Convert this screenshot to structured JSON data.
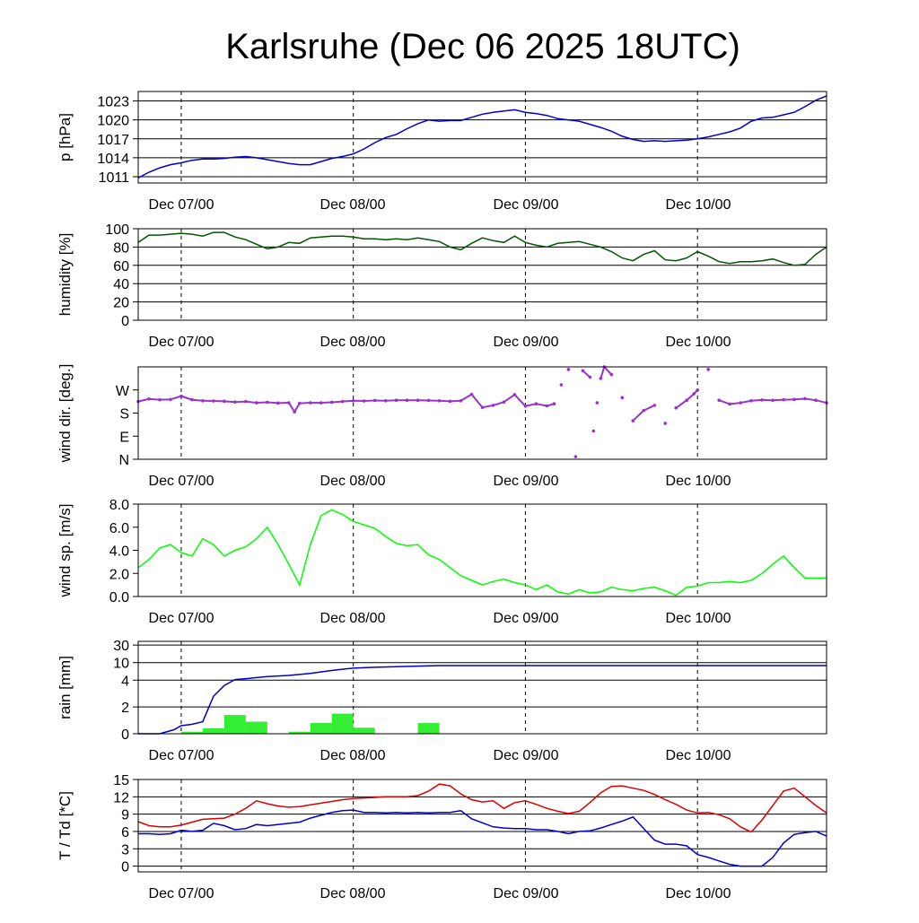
{
  "title": "Karlsruhe (Dec 06 2025 18UTC)",
  "x_tick_labels": [
    "Dec 07/00",
    "Dec 08/00",
    "Dec 09/00",
    "Dec 10/00"
  ],
  "chart_data": [
    {
      "type": "line",
      "ylabel": "p [hPa]",
      "ylim": [
        1010,
        1024.5
      ],
      "yticks": [
        1011,
        1014,
        1017,
        1020,
        1023
      ],
      "ytick_labels": [
        "1011",
        "1014",
        "1017",
        "1020",
        "1023"
      ],
      "xlim": [
        -6,
        90
      ],
      "x_unit": "hours since Dec 07 00UTC",
      "grid": true,
      "series": [
        {
          "color": "#0000cc",
          "x": [
            -6,
            -4.5,
            -3,
            -1.5,
            0,
            1.5,
            3,
            4.5,
            6,
            7.5,
            9,
            10.5,
            12,
            13.5,
            15,
            16.5,
            18,
            19.5,
            21,
            22.5,
            24,
            25.5,
            27,
            28.5,
            30,
            31.5,
            33,
            34.5,
            36,
            37.5,
            39,
            40.5,
            42,
            43.5,
            45,
            46.5,
            48,
            49.5,
            51,
            52.5,
            54,
            55.5,
            57,
            58.5,
            60,
            61.5,
            63,
            64.5,
            66,
            67.5,
            69,
            70.5,
            72,
            73.5,
            75,
            76.5,
            78,
            79.5,
            81,
            82.5,
            84,
            85.5,
            87,
            88.5,
            90
          ],
          "y": [
            1010.8,
            1011.7,
            1012.4,
            1012.9,
            1013.2,
            1013.6,
            1013.8,
            1013.8,
            1013.9,
            1014.1,
            1014.2,
            1014.0,
            1013.7,
            1013.4,
            1013.1,
            1012.9,
            1012.9,
            1013.4,
            1013.9,
            1014.2,
            1014.6,
            1015.4,
            1016.4,
            1017.2,
            1017.7,
            1018.6,
            1019.4,
            1020.0,
            1019.8,
            1019.9,
            1019.9,
            1020.4,
            1020.9,
            1021.2,
            1021.4,
            1021.6,
            1021.2,
            1021.0,
            1020.7,
            1020.2,
            1020.0,
            1019.8,
            1019.3,
            1018.8,
            1018.2,
            1017.4,
            1016.9,
            1016.6,
            1016.7,
            1016.6,
            1016.7,
            1016.8,
            1017.0,
            1017.3,
            1017.7,
            1018.1,
            1018.7,
            1019.8,
            1020.3,
            1020.4,
            1020.8,
            1021.2,
            1022.1,
            1023.1,
            1023.8
          ]
        }
      ]
    },
    {
      "type": "line",
      "ylabel": "humidity [%]",
      "ylim": [
        0,
        100
      ],
      "yticks": [
        0,
        20,
        40,
        60,
        80,
        100
      ],
      "ytick_labels": [
        "0",
        "20",
        "40",
        "60",
        "80",
        "100"
      ],
      "xlim": [
        -6,
        90
      ],
      "grid": true,
      "series": [
        {
          "color": "#005500",
          "x": [
            -6,
            -4.5,
            -3,
            -1.5,
            0,
            1.5,
            3,
            4.5,
            6,
            7.5,
            9,
            10.5,
            12,
            13.5,
            15,
            16.5,
            18,
            19.5,
            21,
            22.5,
            24,
            25.5,
            27,
            28.5,
            30,
            31.5,
            33,
            34.5,
            36,
            37.5,
            39,
            40.5,
            42,
            43.5,
            45,
            46.5,
            48,
            49.5,
            51,
            52.5,
            54,
            55.5,
            57,
            58.5,
            60,
            61.5,
            63,
            64.5,
            66,
            67.5,
            69,
            70.5,
            72,
            73.5,
            75,
            76.5,
            78,
            79.5,
            81,
            82.5,
            84,
            85.5,
            87,
            88.5,
            90
          ],
          "y": [
            85,
            93,
            93,
            94,
            95,
            94,
            92,
            96,
            96,
            91,
            88,
            83,
            78,
            80,
            85,
            84,
            90,
            91,
            92,
            92,
            91,
            89,
            89,
            88,
            89,
            88,
            90,
            88,
            86,
            80,
            77,
            84,
            90,
            87,
            85,
            92,
            85,
            82,
            80,
            84,
            85,
            86,
            83,
            80,
            75,
            68,
            65,
            72,
            76,
            66,
            65,
            68,
            75,
            70,
            64,
            62,
            64,
            64,
            65,
            67,
            63,
            60,
            61,
            72,
            80
          ]
        }
      ]
    },
    {
      "type": "scatter",
      "ylabel": "wind dir. [deg.]",
      "ylim": [
        0,
        360
      ],
      "yticks": [
        0,
        90,
        180,
        270
      ],
      "ytick_labels": [
        "N",
        "E",
        "S",
        "W"
      ],
      "xlim": [
        -6,
        90
      ],
      "grid": false,
      "series": [
        {
          "color": "#9933cc",
          "x": [
            -6,
            -4.5,
            -3,
            -1.5,
            0,
            1.5,
            3,
            4.5,
            6,
            7.5,
            9,
            10.5,
            12,
            13.5,
            15,
            15.8,
            16.5,
            18,
            19.5,
            21,
            22.5,
            24,
            25.5,
            27,
            28.5,
            30,
            31.5,
            33,
            34.5,
            36,
            37.5,
            39,
            40.5,
            42,
            43.5,
            45,
            46.5,
            48,
            49.5,
            51,
            52,
            53,
            54,
            55,
            56,
            57,
            57.5,
            58,
            58.5,
            59,
            60,
            61.5,
            63,
            64.5,
            66,
            67.5,
            69,
            70.5,
            71.5,
            72,
            73.5,
            75,
            76.5,
            78,
            79.5,
            81,
            82.5,
            84,
            85.5,
            87,
            88.5,
            90
          ],
          "y": [
            225,
            235,
            232,
            233,
            246,
            232,
            228,
            227,
            226,
            223,
            225,
            220,
            222,
            219,
            220,
            185,
            218,
            220,
            220,
            222,
            225,
            228,
            227,
            229,
            228,
            230,
            230,
            230,
            229,
            228,
            226,
            228,
            253,
            202,
            210,
            223,
            252,
            207,
            216,
            208,
            216,
            290,
            350,
            10,
            345,
            320,
            110,
            220,
            315,
            360,
            330,
            240,
            150,
            190,
            210,
            140,
            200,
            230,
            255,
            270,
            350,
            230,
            215,
            220,
            228,
            231,
            230,
            232,
            233,
            236,
            230,
            220
          ]
        }
      ]
    },
    {
      "type": "line",
      "ylabel": "wind sp. [m/s]",
      "ylim": [
        0,
        8.0
      ],
      "yticks": [
        0,
        2,
        4,
        6,
        8
      ],
      "ytick_labels": [
        "0.0",
        "2.0",
        "4.0",
        "6.0",
        "8.0"
      ],
      "xlim": [
        -6,
        90
      ],
      "grid": false,
      "series": [
        {
          "color": "#00ff00",
          "x": [
            -6,
            -4.5,
            -3,
            -1.5,
            0,
            1.5,
            3,
            4.5,
            6,
            7.5,
            9,
            10.5,
            12,
            13.5,
            15,
            16.5,
            18,
            19.5,
            21,
            22.5,
            24,
            25.5,
            27,
            28.5,
            30,
            31.5,
            33,
            34.5,
            36,
            37.5,
            39,
            40.5,
            42,
            43.5,
            45,
            46.5,
            48,
            49.5,
            51,
            52.5,
            54,
            55.5,
            57,
            58.5,
            60,
            61.5,
            63,
            64.5,
            66,
            67.5,
            69,
            70.5,
            72,
            73.5,
            75,
            76.5,
            78,
            79.5,
            81,
            82.5,
            84,
            85.5,
            87,
            88.5,
            90
          ],
          "y": [
            2.5,
            3.2,
            4.2,
            4.5,
            3.8,
            3.5,
            5.0,
            4.5,
            3.5,
            4.0,
            4.3,
            5.0,
            6.0,
            4.5,
            2.8,
            1.0,
            4.5,
            7.0,
            7.5,
            7.1,
            6.5,
            6.2,
            5.9,
            5.2,
            4.6,
            4.4,
            4.5,
            3.6,
            3.2,
            2.5,
            1.8,
            1.4,
            1.0,
            1.3,
            1.5,
            1.2,
            1.0,
            0.6,
            1.0,
            0.4,
            0.2,
            0.6,
            0.3,
            0.4,
            0.8,
            0.6,
            0.5,
            0.7,
            0.8,
            0.5,
            0.1,
            0.8,
            0.9,
            1.2,
            1.2,
            1.3,
            1.2,
            1.4,
            2.0,
            2.8,
            3.5,
            2.5,
            1.6,
            1.6,
            1.6
          ]
        }
      ]
    },
    {
      "type": "bar+line",
      "ylabel": "rain [mm]",
      "scale": "sqrt-like (non-linear)",
      "ylim": [
        0,
        30
      ],
      "yticks": [
        0,
        2,
        4,
        10,
        30
      ],
      "ytick_labels": [
        "0",
        "2",
        "4",
        "10",
        "30"
      ],
      "xlim": [
        -6,
        90
      ],
      "grid": true,
      "bars": {
        "color": "#33ee33",
        "x_start": [
          -3,
          0,
          3,
          6,
          9,
          12,
          15,
          18,
          21,
          24,
          27,
          30,
          33,
          36
        ],
        "x_end": [
          0,
          3,
          6,
          9,
          12,
          15,
          18,
          21,
          24,
          27,
          30,
          33,
          36,
          39
        ],
        "values": [
          0.0,
          0.15,
          0.4,
          1.4,
          0.9,
          0.0,
          0.15,
          0.8,
          1.5,
          0.45,
          0.0,
          0.0,
          0.8,
          0.0
        ]
      },
      "series": [
        {
          "color": "#0000cc",
          "x": [
            -6,
            -3,
            -1,
            0,
            1.5,
            3,
            4.5,
            6,
            7.5,
            9,
            12,
            15,
            18,
            20,
            22,
            24,
            27,
            30,
            33,
            36,
            40,
            50,
            60,
            70,
            80,
            90
          ],
          "y": [
            0.0,
            0.0,
            0.3,
            0.6,
            0.7,
            0.9,
            2.8,
            3.6,
            4.2,
            4.5,
            5.2,
            5.6,
            6.3,
            7.0,
            7.6,
            8.1,
            8.4,
            8.6,
            8.8,
            9.0,
            9.0,
            9.0,
            9.0,
            9.0,
            9.0,
            9.0
          ]
        }
      ]
    },
    {
      "type": "line",
      "ylabel": "T / Td [*C]",
      "ylim": [
        -1,
        15
      ],
      "yticks": [
        0,
        3,
        6,
        9,
        12,
        15
      ],
      "ytick_labels": [
        "0",
        "3",
        "6",
        "9",
        "12",
        "15"
      ],
      "xlim": [
        -6,
        90
      ],
      "grid": true,
      "series": [
        {
          "color": "#dd0000",
          "x": [
            -6,
            -4.5,
            -3,
            -1.5,
            0,
            1.5,
            3,
            4.5,
            6,
            7.5,
            9,
            10.5,
            12,
            13.5,
            15,
            16.5,
            18,
            19.5,
            21,
            22.5,
            24,
            25.5,
            27,
            28.5,
            30,
            31.5,
            33,
            34.5,
            36,
            37.5,
            39,
            40.5,
            42,
            43.5,
            45,
            46.5,
            48,
            49.5,
            51,
            52.5,
            54,
            55.5,
            57,
            58.5,
            60,
            61.5,
            63,
            64.5,
            66,
            67.5,
            69,
            70.5,
            72,
            73.5,
            75,
            76.5,
            78,
            79.5,
            81,
            82.5,
            84,
            85.5,
            87,
            88.5,
            90
          ],
          "y": [
            7.7,
            7.0,
            6.8,
            6.8,
            7.1,
            7.6,
            8.1,
            8.2,
            8.3,
            9.0,
            10.0,
            11.3,
            10.8,
            10.4,
            10.2,
            10.3,
            10.6,
            10.9,
            11.2,
            11.5,
            11.7,
            11.8,
            11.9,
            12.0,
            12.0,
            12.0,
            12.2,
            13.0,
            14.2,
            13.9,
            12.5,
            11.5,
            11.1,
            11.3,
            10.0,
            11.0,
            11.3,
            10.7,
            10.0,
            9.5,
            9.1,
            9.5,
            11.0,
            12.7,
            13.8,
            13.9,
            13.5,
            13.1,
            12.4,
            11.5,
            10.7,
            9.7,
            9.2,
            9.3,
            8.9,
            8.2,
            6.8,
            5.9,
            8.0,
            10.5,
            13.0,
            13.5,
            12.0,
            10.5,
            9.2
          ]
        },
        {
          "color": "#0000cc",
          "x": [
            -6,
            -4.5,
            -3,
            -1.5,
            0,
            1.5,
            3,
            4.5,
            6,
            7.5,
            9,
            10.5,
            12,
            13.5,
            15,
            16.5,
            18,
            19.5,
            21,
            22.5,
            24,
            25.5,
            27,
            28.5,
            30,
            31.5,
            33,
            34.5,
            36,
            37.5,
            39,
            40.5,
            42,
            43.5,
            45,
            46.5,
            48,
            49.5,
            51,
            52.5,
            54,
            55.5,
            57,
            58.5,
            60,
            61.5,
            63,
            64.5,
            66,
            67.5,
            69,
            70.5,
            72,
            73.5,
            75,
            76.5,
            78,
            79.5,
            81,
            82.5,
            84,
            85.5,
            87,
            88.5,
            90
          ],
          "y": [
            5.6,
            5.6,
            5.5,
            5.6,
            6.2,
            6.0,
            6.2,
            7.4,
            7.0,
            6.3,
            6.5,
            7.2,
            7.0,
            7.2,
            7.4,
            7.6,
            8.3,
            8.8,
            9.3,
            9.6,
            9.7,
            9.3,
            9.3,
            9.2,
            9.3,
            9.2,
            9.3,
            9.2,
            9.3,
            9.3,
            9.6,
            8.2,
            7.5,
            6.8,
            6.6,
            6.5,
            6.5,
            6.3,
            6.3,
            6.0,
            5.6,
            6.0,
            6.1,
            6.6,
            7.2,
            7.8,
            8.5,
            6.5,
            4.5,
            3.8,
            3.8,
            3.5,
            2.0,
            1.5,
            0.9,
            0.3,
            0.0,
            0.0,
            0.0,
            1.5,
            4.0,
            5.5,
            5.8,
            6.0,
            5.2
          ]
        }
      ]
    }
  ]
}
